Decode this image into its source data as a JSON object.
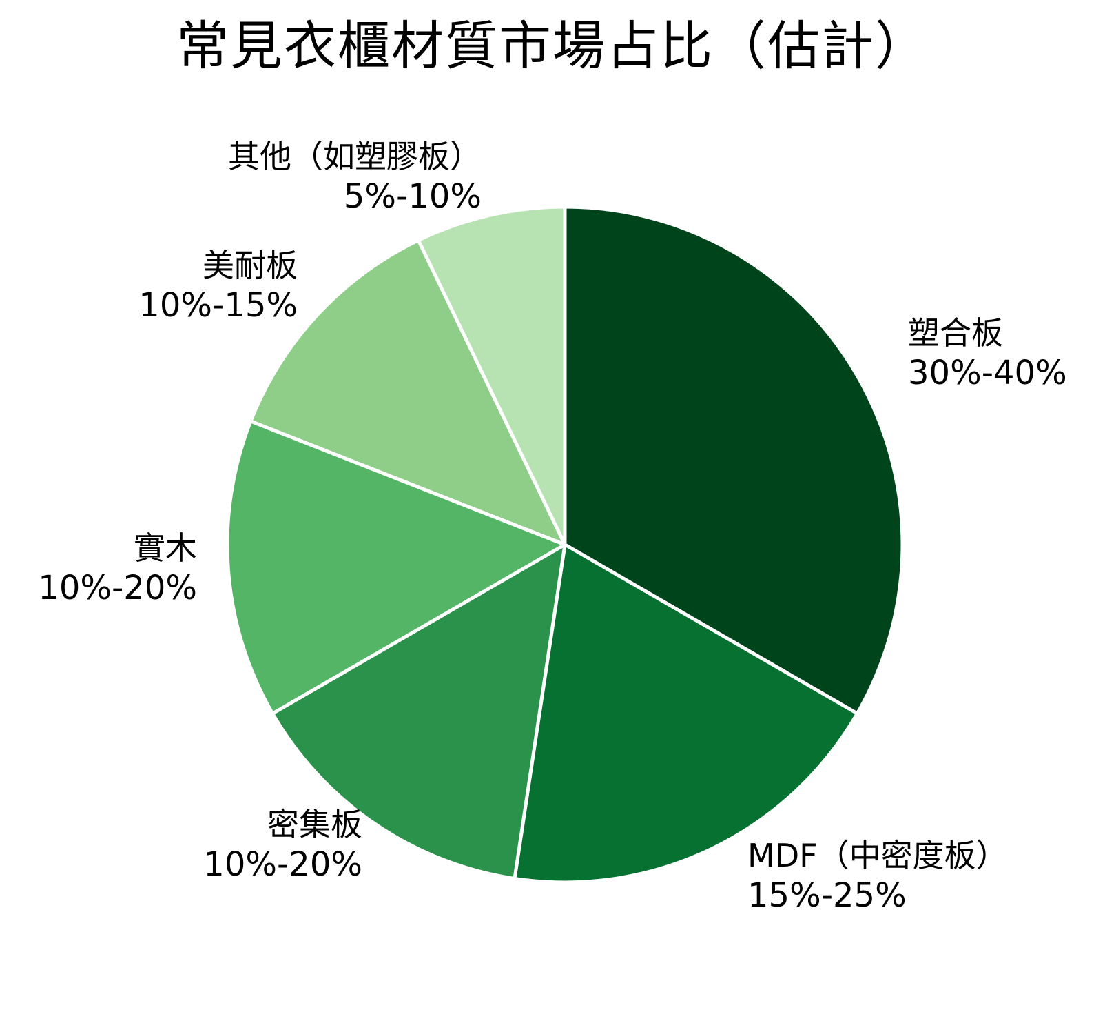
{
  "chart_data": {
    "type": "pie",
    "title": "常見衣櫃材質市場占比（估計）",
    "categories": [
      "塑合板",
      "MDF（中密度板）",
      "密集板",
      "實木",
      "美耐板",
      "其他（如塑膠板）"
    ],
    "ranges": [
      "30%-40%",
      "15%-25%",
      "10%-20%",
      "10%-20%",
      "10%-15%",
      "5%-10%"
    ],
    "values": [
      35,
      20,
      15,
      15,
      12.5,
      7.5
    ],
    "colors": [
      "#00441b",
      "#067130",
      "#2a924a",
      "#55b567",
      "#8ece88",
      "#b7e2b1"
    ],
    "start_angle": "12 o'clock, clockwise",
    "legend": "none (labels beside slices)"
  },
  "title": "常見衣櫃材質市場占比（估計）",
  "slices": [
    {
      "name": "塑合板",
      "range": "30%-40%"
    },
    {
      "name": "MDF（中密度板）",
      "range": "15%-25%"
    },
    {
      "name": "密集板",
      "range": "10%-20%"
    },
    {
      "name": "實木",
      "range": "10%-20%"
    },
    {
      "name": "美耐板",
      "range": "10%-15%"
    },
    {
      "name": "其他（如塑膠板）",
      "range": "5%-10%"
    }
  ]
}
